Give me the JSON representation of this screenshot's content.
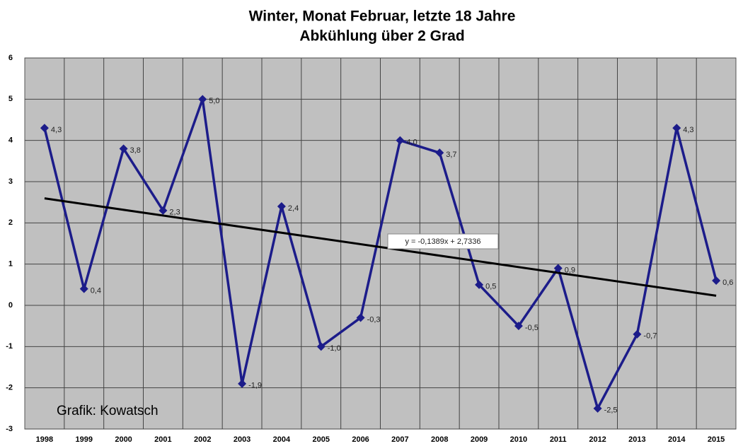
{
  "chart_data": {
    "type": "line",
    "title": [
      "Winter, Monat Februar, letzte 18 Jahre",
      "Abkühlung über 2 Grad"
    ],
    "categories": [
      "1998",
      "1999",
      "2000",
      "2001",
      "2002",
      "2003",
      "2004",
      "2005",
      "2006",
      "2007",
      "2008",
      "2009",
      "2010",
      "2011",
      "2012",
      "2013",
      "2014",
      "2015"
    ],
    "series": [
      {
        "color": "#1c1c8a",
        "values": [
          4.3,
          0.4,
          3.8,
          2.3,
          5.0,
          -1.9,
          2.4,
          -1.0,
          -0.3,
          4.0,
          3.7,
          0.5,
          -0.5,
          0.9,
          -2.5,
          -0.7,
          4.3,
          0.6
        ],
        "value_labels": [
          "4,3",
          "0,4",
          "3,8",
          "2,3",
          "5,0",
          "-1,9",
          "2,4",
          "-1,0",
          "-0,3",
          "4,0",
          "3,7",
          "0,5",
          "-0,5",
          "0,9",
          "-2,5",
          "-0,7",
          "4,3",
          "0,6"
        ]
      }
    ],
    "trendline": {
      "slope": -0.1389,
      "intercept": 2.7336,
      "label": "y = -0,1389x + 2,7336",
      "color": "#000000"
    },
    "annotation": "Grafik: Kowatsch",
    "ylim": [
      -3,
      6
    ],
    "yticks": [
      -3,
      -2,
      -1,
      0,
      1,
      2,
      3,
      4,
      5,
      6
    ],
    "grid": true,
    "plot_background": "#c0c0c0"
  }
}
